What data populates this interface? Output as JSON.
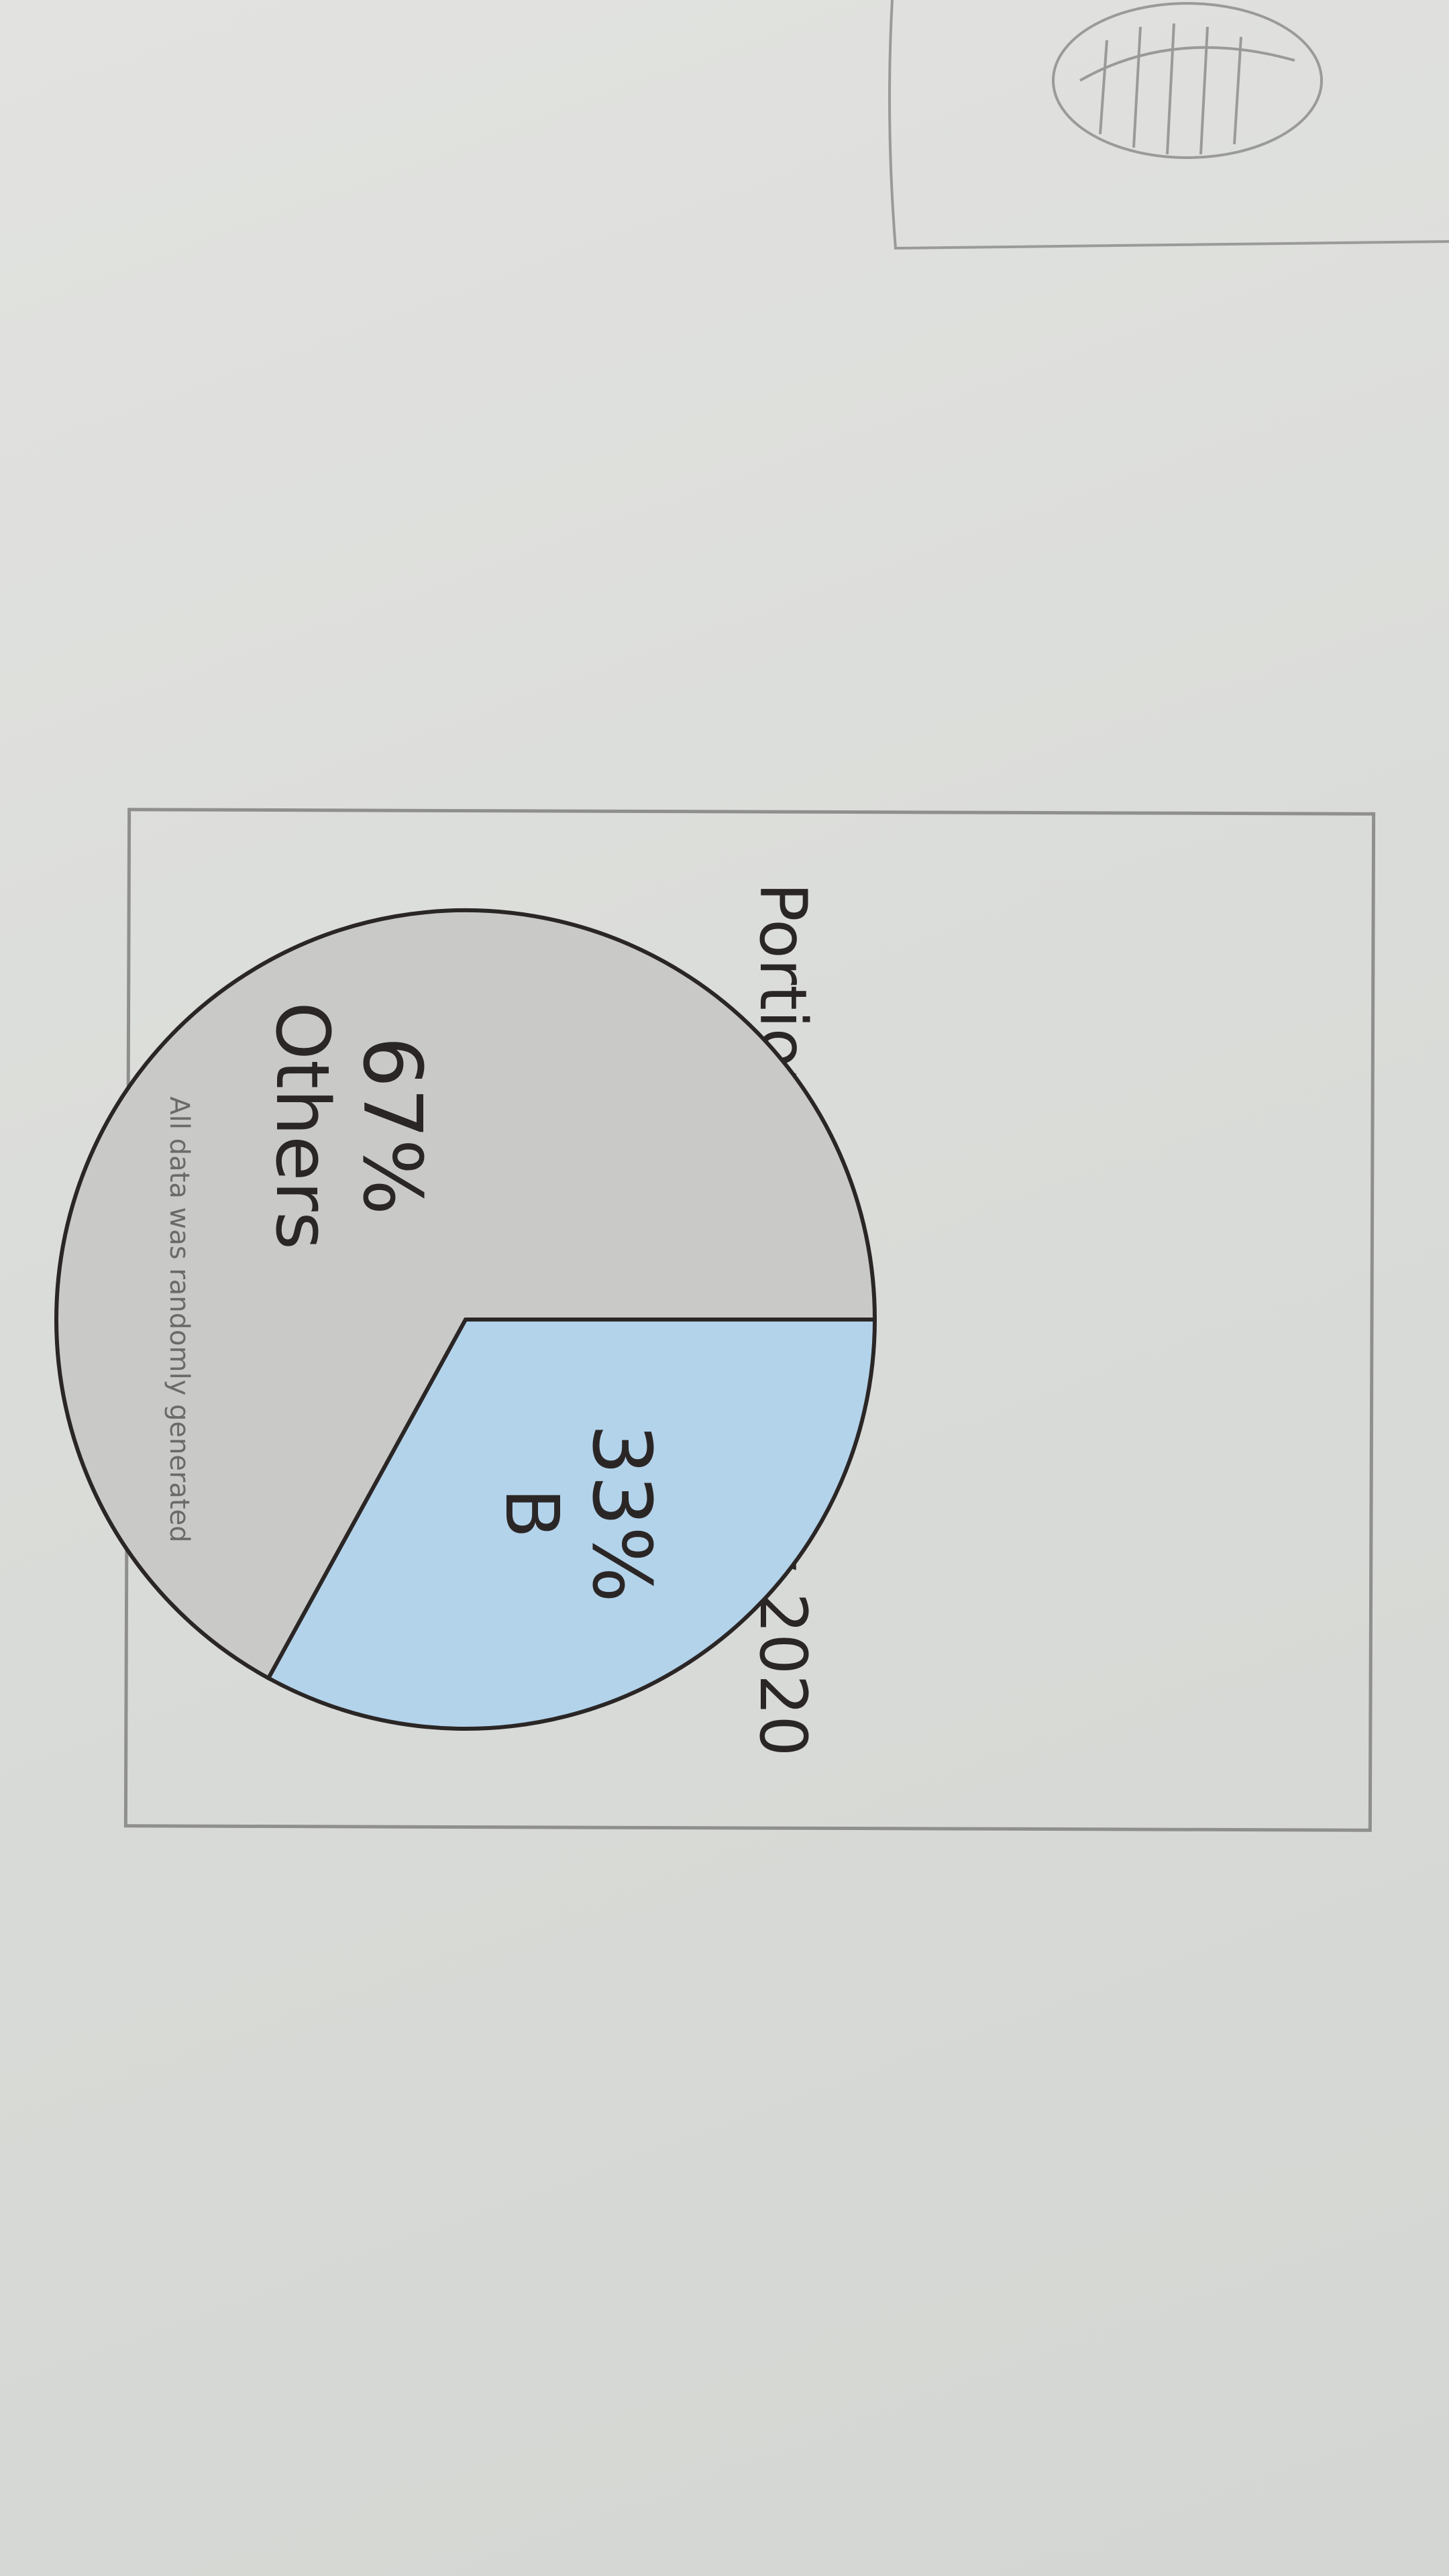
{
  "chart_data": {
    "type": "pie",
    "title": "Portion of B from Nov 2020",
    "slices": [
      {
        "label": "B",
        "value": 33,
        "value_label": "33%",
        "color": "#b3d3ea"
      },
      {
        "label": "Others",
        "value": 67,
        "value_label": "67%",
        "color": "#c9cac8"
      }
    ],
    "start_angle_deg": 0,
    "direction": "clockwise",
    "legend": "none"
  },
  "footnote": "All data was randomly generated",
  "colors": {
    "paper": "#dcdedb",
    "pencil": "#2b2626",
    "b_fill": "#b3d3ea",
    "others_fill": "#c9cac8"
  }
}
